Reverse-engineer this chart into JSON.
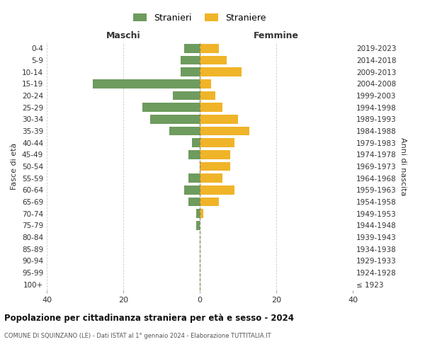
{
  "age_groups": [
    "100+",
    "95-99",
    "90-94",
    "85-89",
    "80-84",
    "75-79",
    "70-74",
    "65-69",
    "60-64",
    "55-59",
    "50-54",
    "45-49",
    "40-44",
    "35-39",
    "30-34",
    "25-29",
    "20-24",
    "15-19",
    "10-14",
    "5-9",
    "0-4"
  ],
  "birth_years": [
    "≤ 1923",
    "1924-1928",
    "1929-1933",
    "1934-1938",
    "1939-1943",
    "1944-1948",
    "1949-1953",
    "1954-1958",
    "1959-1963",
    "1964-1968",
    "1969-1973",
    "1974-1978",
    "1979-1983",
    "1984-1988",
    "1989-1993",
    "1994-1998",
    "1999-2003",
    "2004-2008",
    "2009-2013",
    "2014-2018",
    "2019-2023"
  ],
  "maschi": [
    0,
    0,
    0,
    0,
    0,
    1,
    1,
    3,
    4,
    3,
    0,
    3,
    2,
    8,
    13,
    15,
    7,
    28,
    5,
    5,
    4
  ],
  "femmine": [
    0,
    0,
    0,
    0,
    0,
    0,
    1,
    5,
    9,
    6,
    8,
    8,
    9,
    13,
    10,
    6,
    4,
    3,
    11,
    7,
    5
  ],
  "maschi_color": "#6e9b5e",
  "femmine_color": "#f0b429",
  "center_line_color": "#888855",
  "grid_color": "#cccccc",
  "bg_color": "#ffffff",
  "xlim": [
    -40,
    40
  ],
  "xlabel_maschi": "Maschi",
  "xlabel_femmine": "Femmine",
  "ylabel_left": "Fasce di età",
  "ylabel_right": "Anni di nascita",
  "title": "Popolazione per cittadinanza straniera per età e sesso - 2024",
  "subtitle": "COMUNE DI SQUINZANO (LE) - Dati ISTAT al 1° gennaio 2024 - Elaborazione TUTTITALIA.IT",
  "legend_stranieri": "Stranieri",
  "legend_straniere": "Straniere",
  "xticks": [
    -40,
    -20,
    0,
    20,
    40
  ],
  "xtick_labels": [
    "40",
    "20",
    "0",
    "20",
    "40"
  ]
}
